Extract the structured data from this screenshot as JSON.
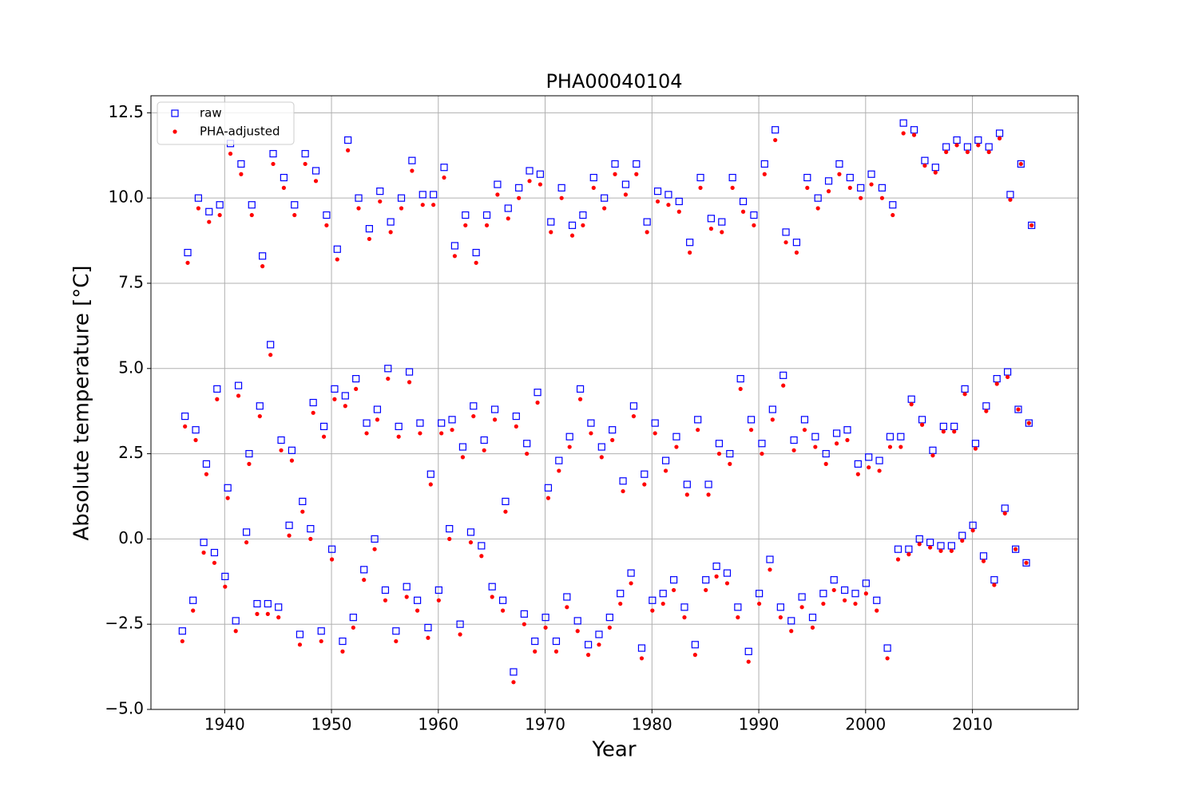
{
  "chart_data": {
    "type": "scatter",
    "title": "PHA00040104",
    "x_label": "Year",
    "y_label": "Absolute temperature [°C]",
    "xlim": [
      1933.1,
      2019.9
    ],
    "xticks": [
      1940,
      1950,
      1960,
      1970,
      1980,
      1990,
      2000,
      2010
    ],
    "ylim": [
      -5.0,
      13.0
    ],
    "yticks": [
      {
        "value": -5,
        "label": "−5.0"
      },
      {
        "value": -2.5,
        "label": "−2.5"
      },
      {
        "value": 0,
        "label": "0.0"
      },
      {
        "value": 2.5,
        "label": "2.5"
      },
      {
        "value": 5,
        "label": "5.0"
      },
      {
        "value": 7.5,
        "label": "7.5"
      },
      {
        "value": 10,
        "label": "10.0"
      },
      {
        "value": 12.5,
        "label": "12.5"
      }
    ],
    "grid": true,
    "legend": "upper-left",
    "x": [
      1936.04,
      1936.29,
      1936.54,
      1937.04,
      1937.29,
      1937.54,
      1938.04,
      1938.29,
      1938.54,
      1939.04,
      1939.29,
      1939.54,
      1940.04,
      1940.29,
      1940.54,
      1941.04,
      1941.29,
      1941.54,
      1942.04,
      1942.29,
      1942.54,
      1943.04,
      1943.29,
      1943.54,
      1944.04,
      1944.29,
      1944.54,
      1945.04,
      1945.29,
      1945.54,
      1946.04,
      1946.29,
      1946.54,
      1947.04,
      1947.29,
      1947.54,
      1948.04,
      1948.29,
      1948.54,
      1949.04,
      1949.29,
      1949.54,
      1950.04,
      1950.29,
      1950.54,
      1951.04,
      1951.29,
      1951.54,
      1952.04,
      1952.29,
      1952.54,
      1953.04,
      1953.29,
      1953.54,
      1954.04,
      1954.29,
      1954.54,
      1955.04,
      1955.29,
      1955.54,
      1956.04,
      1956.29,
      1956.54,
      1957.04,
      1957.29,
      1957.54,
      1958.04,
      1958.29,
      1958.54,
      1959.04,
      1959.29,
      1959.54,
      1960.04,
      1960.29,
      1960.54,
      1961.04,
      1961.29,
      1961.54,
      1962.04,
      1962.29,
      1962.54,
      1963.04,
      1963.29,
      1963.54,
      1964.04,
      1964.29,
      1964.54,
      1965.04,
      1965.29,
      1965.54,
      1966.04,
      1966.29,
      1966.54,
      1967.04,
      1967.29,
      1967.54,
      1968.04,
      1968.29,
      1968.54,
      1969.04,
      1969.29,
      1969.54,
      1970.04,
      1970.29,
      1970.54,
      1971.04,
      1971.29,
      1971.54,
      1972.04,
      1972.29,
      1972.54,
      1973.04,
      1973.29,
      1973.54,
      1974.04,
      1974.29,
      1974.54,
      1975.04,
      1975.29,
      1975.54,
      1976.04,
      1976.29,
      1976.54,
      1977.04,
      1977.29,
      1977.54,
      1978.04,
      1978.29,
      1978.54,
      1979.04,
      1979.29,
      1979.54,
      1980.04,
      1980.29,
      1980.54,
      1981.04,
      1981.29,
      1981.54,
      1982.04,
      1982.29,
      1982.54,
      1983.04,
      1983.29,
      1983.54,
      1984.04,
      1984.29,
      1984.54,
      1985.04,
      1985.29,
      1985.54,
      1986.04,
      1986.29,
      1986.54,
      1987.04,
      1987.29,
      1987.54,
      1988.04,
      1988.29,
      1988.54,
      1989.04,
      1989.29,
      1989.54,
      1990.04,
      1990.29,
      1990.54,
      1991.04,
      1991.29,
      1991.54,
      1992.04,
      1992.29,
      1992.54,
      1993.04,
      1993.29,
      1993.54,
      1994.04,
      1994.29,
      1994.54,
      1995.04,
      1995.29,
      1995.54,
      1996.04,
      1996.29,
      1996.54,
      1997.04,
      1997.29,
      1997.54,
      1998.04,
      1998.29,
      1998.54,
      1999.04,
      1999.29,
      1999.54,
      2000.04,
      2000.29,
      2000.54,
      2001.04,
      2001.29,
      2001.54,
      2002.04,
      2002.29,
      2002.54,
      2003.04,
      2003.29,
      2003.54,
      2004.04,
      2004.29,
      2004.54,
      2005.04,
      2005.29,
      2005.54,
      2006.04,
      2006.29,
      2006.54,
      2007.04,
      2007.29,
      2007.54,
      2008.04,
      2008.29,
      2008.54,
      2009.04,
      2009.29,
      2009.54,
      2010.04,
      2010.29,
      2010.54,
      2011.04,
      2011.29,
      2011.54,
      2012.04,
      2012.29,
      2012.54,
      2013.04,
      2013.29,
      2013.54,
      2014.04,
      2014.29,
      2014.54,
      2015.04,
      2015.29,
      2015.54
    ],
    "series": [
      {
        "name": "raw",
        "color": "#0000ff",
        "marker": "square",
        "values": [
          -2.7,
          3.6,
          8.4,
          -1.8,
          3.2,
          10.0,
          -0.1,
          2.2,
          9.6,
          -0.4,
          4.4,
          9.8,
          -1.1,
          1.5,
          11.6,
          -2.4,
          4.5,
          11.0,
          0.2,
          2.5,
          9.8,
          -1.9,
          3.9,
          8.3,
          -1.9,
          5.7,
          11.3,
          -2.0,
          2.9,
          10.6,
          0.4,
          2.6,
          9.8,
          -2.8,
          1.1,
          11.3,
          0.3,
          4.0,
          10.8,
          -2.7,
          3.3,
          9.5,
          -0.3,
          4.4,
          8.5,
          -3.0,
          4.2,
          11.7,
          -2.3,
          4.7,
          10.0,
          -0.9,
          3.4,
          9.1,
          0.0,
          3.8,
          10.2,
          -1.5,
          5.0,
          9.3,
          -2.7,
          3.3,
          10.0,
          -1.4,
          4.9,
          11.1,
          -1.8,
          3.4,
          10.1,
          -2.6,
          1.9,
          10.1,
          -1.5,
          3.4,
          10.9,
          0.3,
          3.5,
          8.6,
          -2.5,
          2.7,
          9.5,
          0.2,
          3.9,
          8.4,
          -0.2,
          2.9,
          9.5,
          -1.4,
          3.8,
          10.4,
          -1.8,
          1.1,
          9.7,
          -3.9,
          3.6,
          10.3,
          -2.2,
          2.8,
          10.8,
          -3.0,
          4.3,
          10.7,
          -2.3,
          1.5,
          9.3,
          -3.0,
          2.3,
          10.3,
          -1.7,
          3.0,
          9.2,
          -2.4,
          4.4,
          9.5,
          -3.1,
          3.4,
          10.6,
          -2.8,
          2.7,
          10.0,
          -2.3,
          3.2,
          11.0,
          -1.6,
          1.7,
          10.4,
          -1.0,
          3.9,
          11.0,
          -3.2,
          1.9,
          9.3,
          -1.8,
          3.4,
          10.2,
          -1.6,
          2.3,
          10.1,
          -1.2,
          3.0,
          9.9,
          -2.0,
          1.6,
          8.7,
          -3.1,
          3.5,
          10.6,
          -1.2,
          1.6,
          9.4,
          -0.8,
          2.8,
          9.3,
          -1.0,
          2.5,
          10.6,
          -2.0,
          4.7,
          9.9,
          -3.3,
          3.5,
          9.5,
          -1.6,
          2.8,
          11.0,
          -0.6,
          3.8,
          12.0,
          -2.0,
          4.8,
          9.0,
          -2.4,
          2.9,
          8.7,
          -1.7,
          3.5,
          10.6,
          -2.3,
          3.0,
          10.0,
          -1.6,
          2.5,
          10.5,
          -1.2,
          3.1,
          11.0,
          -1.5,
          3.2,
          10.6,
          -1.6,
          2.2,
          10.3,
          -1.3,
          2.4,
          10.7,
          -1.8,
          2.3,
          10.3,
          -3.2,
          3.0,
          9.8,
          -0.3,
          3.0,
          12.2,
          -0.3,
          4.1,
          12.0,
          0.0,
          3.5,
          11.1,
          -0.1,
          2.6,
          10.9,
          -0.2,
          3.3,
          11.5,
          -0.2,
          3.3,
          11.7,
          0.1,
          4.4,
          11.5,
          0.4,
          2.8,
          11.7,
          -0.5,
          3.9,
          11.5,
          -1.2,
          4.7,
          11.9,
          0.9,
          4.9,
          10.1,
          -0.3,
          3.8,
          11.0,
          -0.7,
          3.4,
          9.2
        ]
      },
      {
        "name": "PHA-adjusted",
        "color": "#ff0000",
        "marker": "dot",
        "values": [
          -3.0,
          3.3,
          8.1,
          -2.1,
          2.9,
          9.7,
          -0.4,
          1.9,
          9.3,
          -0.7,
          4.1,
          9.5,
          -1.4,
          1.2,
          11.3,
          -2.7,
          4.2,
          10.7,
          -0.1,
          2.2,
          9.5,
          -2.2,
          3.6,
          8.0,
          -2.2,
          5.4,
          11.0,
          -2.3,
          2.6,
          10.3,
          0.1,
          2.3,
          9.5,
          -3.1,
          0.8,
          11.0,
          0.0,
          3.7,
          10.5,
          -3.0,
          3.0,
          9.2,
          -0.6,
          4.1,
          8.2,
          -3.3,
          3.9,
          11.4,
          -2.6,
          4.4,
          9.7,
          -1.2,
          3.1,
          8.8,
          -0.3,
          3.5,
          9.9,
          -1.8,
          4.7,
          9.0,
          -3.0,
          3.0,
          9.7,
          -1.7,
          4.6,
          10.8,
          -2.1,
          3.1,
          9.8,
          -2.9,
          1.6,
          9.8,
          -1.8,
          3.1,
          10.6,
          0.0,
          3.2,
          8.3,
          -2.8,
          2.4,
          9.2,
          -0.1,
          3.6,
          8.1,
          -0.5,
          2.6,
          9.2,
          -1.7,
          3.5,
          10.1,
          -2.1,
          0.8,
          9.4,
          -4.2,
          3.3,
          10.0,
          -2.5,
          2.5,
          10.5,
          -3.3,
          4.0,
          10.4,
          -2.6,
          1.2,
          9.0,
          -3.3,
          2.0,
          10.0,
          -2.0,
          2.7,
          8.9,
          -2.7,
          4.1,
          9.2,
          -3.4,
          3.1,
          10.3,
          -3.1,
          2.4,
          9.7,
          -2.6,
          2.9,
          10.7,
          -1.9,
          1.4,
          10.1,
          -1.3,
          3.6,
          10.7,
          -3.5,
          1.6,
          9.0,
          -2.1,
          3.1,
          9.9,
          -1.9,
          2.0,
          9.8,
          -1.5,
          2.7,
          9.6,
          -2.3,
          1.3,
          8.4,
          -3.4,
          3.2,
          10.3,
          -1.5,
          1.3,
          9.1,
          -1.1,
          2.5,
          9.0,
          -1.3,
          2.2,
          10.3,
          -2.3,
          4.4,
          9.6,
          -3.6,
          3.2,
          9.2,
          -1.9,
          2.5,
          10.7,
          -0.9,
          3.5,
          11.7,
          -2.3,
          4.5,
          8.7,
          -2.7,
          2.6,
          8.4,
          -2.0,
          3.2,
          10.3,
          -2.6,
          2.7,
          9.7,
          -1.9,
          2.2,
          10.2,
          -1.5,
          2.8,
          10.7,
          -1.8,
          2.9,
          10.3,
          -1.9,
          1.9,
          10.0,
          -1.6,
          2.1,
          10.4,
          -2.1,
          2.0,
          10.0,
          -3.5,
          2.7,
          9.5,
          -0.6,
          2.7,
          11.9,
          -0.45,
          3.95,
          11.85,
          -0.15,
          3.35,
          10.95,
          -0.25,
          2.45,
          10.75,
          -0.35,
          3.15,
          11.35,
          -0.35,
          3.15,
          11.55,
          -0.05,
          4.25,
          11.35,
          0.25,
          2.65,
          11.55,
          -0.65,
          3.75,
          11.35,
          -1.35,
          4.55,
          11.75,
          0.75,
          4.75,
          9.95,
          -0.3,
          3.8,
          11.0,
          -0.7,
          3.4,
          9.2
        ]
      }
    ]
  }
}
